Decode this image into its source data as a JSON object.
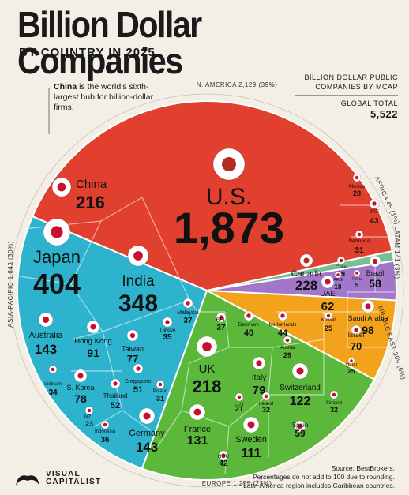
{
  "header": {
    "title": "Billion Dollar Companies",
    "subtitle": "BY COUNTRY IN 2025",
    "note_bold": "China",
    "note_rest": " is the world's sixth-largest hub for billion-dollar firms.",
    "legend_line1": "BILLION DOLLAR PUBLIC",
    "legend_line2": "COMPANIES BY MCAP",
    "total_label": "GLOBAL TOTAL",
    "total_value": "5,522"
  },
  "footer": {
    "source": "Source: BestBrokers.",
    "note1": "Percentages do not add to 100 due to rounding.",
    "note2": "Latin America region includes Caribbean countries.",
    "logo_line1": "VISUAL",
    "logo_line2": "CAPITALIST"
  },
  "colors": {
    "north_america": "#e1402e",
    "asia_pacific": "#2eb3cf",
    "europe": "#5cb83a",
    "middle_east": "#f3a21c",
    "latam": "#a277c9",
    "africa": "#78bf93"
  },
  "chart_data": {
    "type": "voronoi-treemap",
    "title": "Billion Dollar Companies",
    "regions": [
      {
        "name": "N. AMERICA",
        "value": 2129,
        "share": "39%",
        "label": "N. AMERICA 2,129 (39%)"
      },
      {
        "name": "EUROPE",
        "value": 1255,
        "share": "23%",
        "label": "EUROPE 1,255 (23%)"
      },
      {
        "name": "ASIA-PACIFIC",
        "value": 1643,
        "share": "30%",
        "label": "ASIA-PACIFIC 1,643 (30%)"
      },
      {
        "name": "MIDDLE EAST",
        "value": 309,
        "share": "6%",
        "label": "MIDDLE EAST 309 (6%)"
      },
      {
        "name": "LATAM",
        "value": 141,
        "share": "3%",
        "label": "LATAM 141 (3%)"
      },
      {
        "name": "AFRICA",
        "value": 45,
        "share": "1%",
        "label": "AFRICA 45 (1%)"
      }
    ],
    "countries": [
      {
        "region": "N. AMERICA",
        "name": "U.S.",
        "value": 1873
      },
      {
        "region": "N. AMERICA",
        "name": "Canada",
        "value": 228
      },
      {
        "region": "N. AMERICA",
        "name": "Mexico",
        "value": 28
      },
      {
        "region": "ASIA-PACIFIC",
        "name": "China",
        "value": 216
      },
      {
        "region": "ASIA-PACIFIC",
        "name": "Japan",
        "value": 404
      },
      {
        "region": "ASIA-PACIFIC",
        "name": "India",
        "value": 348
      },
      {
        "region": "ASIA-PACIFIC",
        "name": "Australia",
        "value": 143
      },
      {
        "region": "ASIA-PACIFIC",
        "name": "Hong Kong",
        "value": 91
      },
      {
        "region": "ASIA-PACIFIC",
        "name": "Taiwan",
        "value": 77
      },
      {
        "region": "ASIA-PACIFIC",
        "name": "Malaysia",
        "value": 37
      },
      {
        "region": "ASIA-PACIFIC",
        "name": "Vietnam",
        "value": 34
      },
      {
        "region": "ASIA-PACIFIC",
        "name": "S. Korea",
        "value": 78
      },
      {
        "region": "ASIA-PACIFIC",
        "name": "Thailand",
        "value": 52
      },
      {
        "region": "ASIA-PACIFIC",
        "name": "Singapore",
        "value": 51
      },
      {
        "region": "ASIA-PACIFIC",
        "name": "NZL",
        "value": 23
      },
      {
        "region": "ASIA-PACIFIC",
        "name": "Indonesia",
        "value": 36
      },
      {
        "region": "EUROPE",
        "name": "UK",
        "value": 218
      },
      {
        "region": "EUROPE",
        "name": "Türkiye",
        "value": 35
      },
      {
        "region": "EUROPE",
        "name": "BEL",
        "value": 37
      },
      {
        "region": "EUROPE",
        "name": "Denmark",
        "value": 40
      },
      {
        "region": "EUROPE",
        "name": "Netherlands",
        "value": 44
      },
      {
        "region": "EUROPE",
        "name": "Austria",
        "value": 29
      },
      {
        "region": "EUROPE",
        "name": "Poland",
        "value": 31
      },
      {
        "region": "EUROPE",
        "name": "Italy",
        "value": 79
      },
      {
        "region": "EUROPE",
        "name": "Switzerland",
        "value": 122
      },
      {
        "region": "EUROPE",
        "name": "LUX",
        "value": 21
      },
      {
        "region": "EUROPE",
        "name": "Ireland",
        "value": 32
      },
      {
        "region": "EUROPE",
        "name": "France",
        "value": 131
      },
      {
        "region": "EUROPE",
        "name": "Germany",
        "value": 143
      },
      {
        "region": "EUROPE",
        "name": "Spain",
        "value": 59
      },
      {
        "region": "EUROPE",
        "name": "Finland",
        "value": 32
      },
      {
        "region": "EUROPE",
        "name": "Sweden",
        "value": 111
      },
      {
        "region": "EUROPE",
        "name": "NOR",
        "value": 42
      },
      {
        "region": "MIDDLE EAST",
        "name": "UAE",
        "value": 62
      },
      {
        "region": "MIDDLE EAST",
        "name": "Saudi Arabia",
        "value": 98
      },
      {
        "region": "MIDDLE EAST",
        "name": "Kuwait",
        "value": 25
      },
      {
        "region": "MIDDLE EAST",
        "name": "Israel",
        "value": 70
      },
      {
        "region": "MIDDLE EAST",
        "name": "Qatar",
        "value": 25
      },
      {
        "region": "LATAM",
        "name": "Bermuda",
        "value": 31
      },
      {
        "region": "LATAM",
        "name": "Brazil",
        "value": 58
      },
      {
        "region": "LATAM",
        "name": "Chile",
        "value": 19
      },
      {
        "region": "LATAM",
        "name": "ARG",
        "value": 18
      },
      {
        "region": "LATAM",
        "name": "Peru",
        "value": 5
      },
      {
        "region": "AFRICA",
        "name": "ZAF",
        "value": 43
      }
    ]
  }
}
